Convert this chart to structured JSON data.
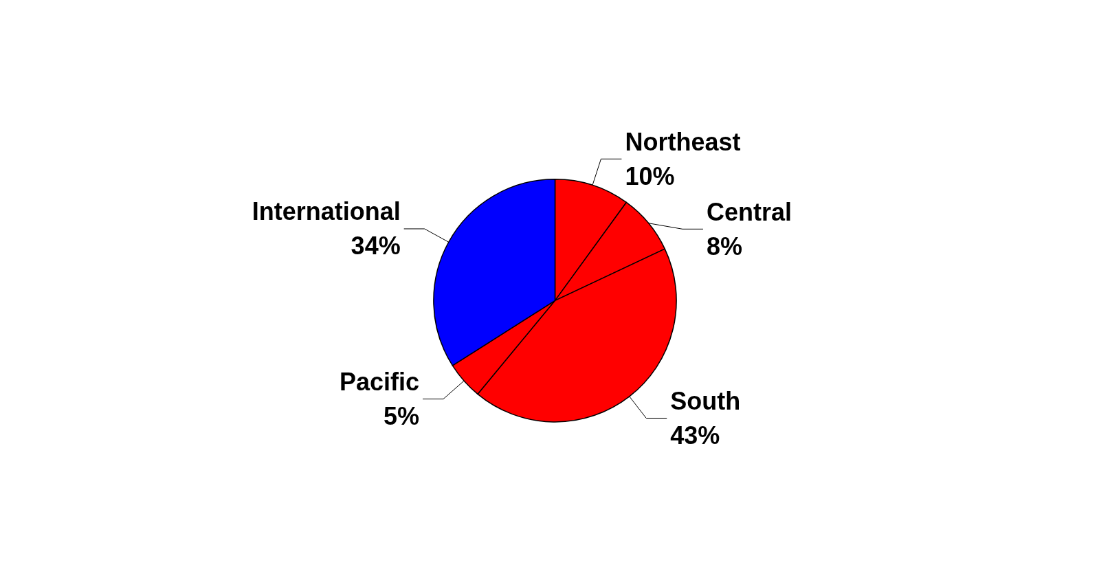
{
  "chart_data": {
    "type": "pie",
    "categories": [
      "Northeast",
      "Central",
      "South",
      "Pacific",
      "International"
    ],
    "values": [
      10,
      8,
      43,
      5,
      34
    ],
    "value_labels": [
      "10%",
      "8%",
      "43%",
      "5%",
      "34%"
    ],
    "colors": [
      "#ff0000",
      "#ff0000",
      "#ff0000",
      "#ff0000",
      "#0000ff"
    ],
    "legend": false
  }
}
